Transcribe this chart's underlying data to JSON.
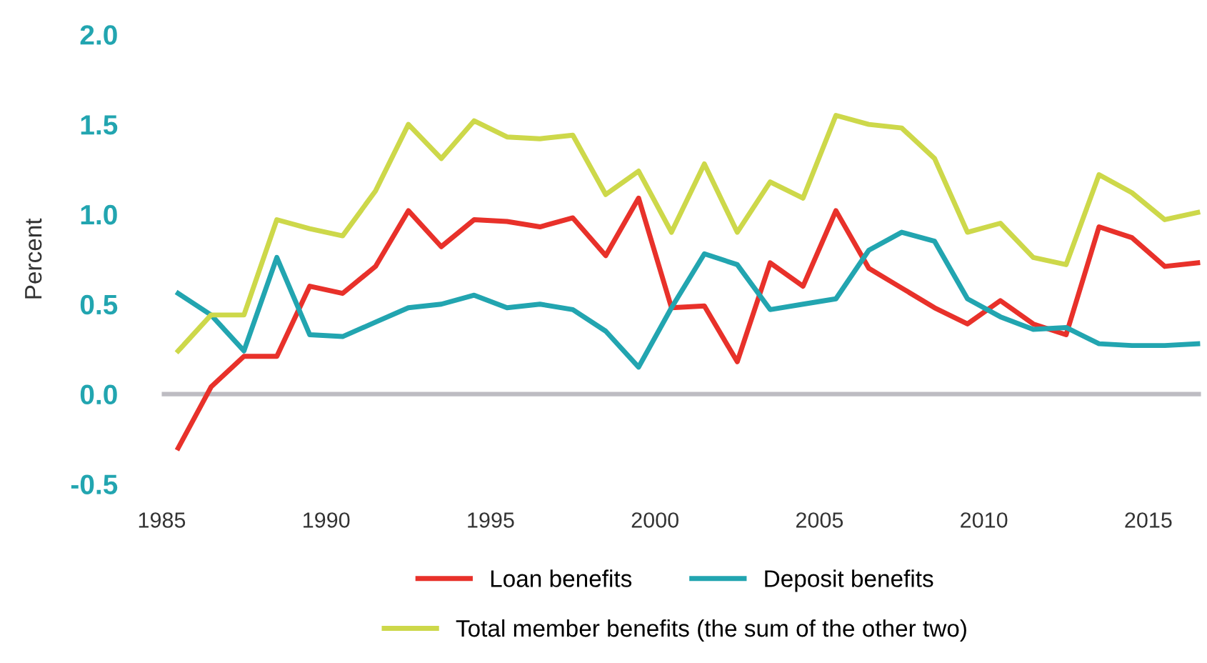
{
  "chart_data": {
    "type": "line",
    "ylabel": "Percent",
    "x": [
      1985.5,
      1986.5,
      1987.5,
      1988.5,
      1989.5,
      1990.5,
      1991.5,
      1992.5,
      1993.5,
      1994.5,
      1995.5,
      1996.5,
      1997.5,
      1998.5,
      1999.5,
      2000.5,
      2001.5,
      2002.5,
      2003.5,
      2004.5,
      2005.5,
      2006.5,
      2007.5,
      2008.5,
      2009.5,
      2010.5,
      2011.5,
      2012.5,
      2013.5,
      2014.5,
      2015.5,
      2016.5
    ],
    "series": [
      {
        "name": "Loan benefits",
        "color": "#e8312a",
        "values": [
          -0.3,
          0.04,
          0.21,
          0.21,
          0.6,
          0.56,
          0.71,
          1.02,
          0.82,
          0.97,
          0.96,
          0.93,
          0.98,
          0.77,
          1.09,
          0.48,
          0.49,
          0.18,
          0.73,
          0.6,
          1.02,
          0.7,
          0.59,
          0.48,
          0.39,
          0.52,
          0.39,
          0.33,
          0.93,
          0.87,
          0.71,
          0.73
        ]
      },
      {
        "name": "Deposit benefits",
        "color": "#22a5b0",
        "values": [
          0.56,
          0.44,
          0.24,
          0.76,
          0.33,
          0.32,
          0.4,
          0.48,
          0.5,
          0.55,
          0.48,
          0.5,
          0.47,
          0.35,
          0.15,
          0.48,
          0.78,
          0.72,
          0.47,
          0.5,
          0.53,
          0.8,
          0.9,
          0.85,
          0.53,
          0.43,
          0.36,
          0.37,
          0.28,
          0.27,
          0.27,
          0.28
        ]
      },
      {
        "name": "Total member benefits (the sum of the other two)",
        "color": "#cdd84a",
        "values": [
          0.24,
          0.44,
          0.44,
          0.97,
          0.92,
          0.88,
          1.13,
          1.5,
          1.31,
          1.52,
          1.43,
          1.42,
          1.44,
          1.11,
          1.24,
          0.9,
          1.28,
          0.9,
          1.18,
          1.09,
          1.55,
          1.5,
          1.48,
          1.31,
          0.9,
          0.95,
          0.76,
          0.72,
          1.22,
          1.12,
          0.97,
          1.01
        ]
      }
    ],
    "xlim": [
      1985,
      2016.6
    ],
    "xticks": [
      1985,
      1990,
      1995,
      2000,
      2005,
      2010,
      2015
    ],
    "ylim": [
      -0.5,
      2.0
    ],
    "yticks": [
      {
        "value": -0.5,
        "label": "-0.5"
      },
      {
        "value": 0.0,
        "label": "0.0"
      },
      {
        "value": 0.5,
        "label": "0.5"
      },
      {
        "value": 1.0,
        "label": "1.0"
      },
      {
        "value": 1.5,
        "label": "1.5"
      },
      {
        "value": 2.0,
        "label": "2.0"
      }
    ],
    "ref_lines": [
      {
        "axis": "y",
        "value": 0,
        "color": "#bdbcc2"
      }
    ],
    "grid": false,
    "legend": "bottom",
    "marker": "none",
    "line_style": "solid"
  }
}
